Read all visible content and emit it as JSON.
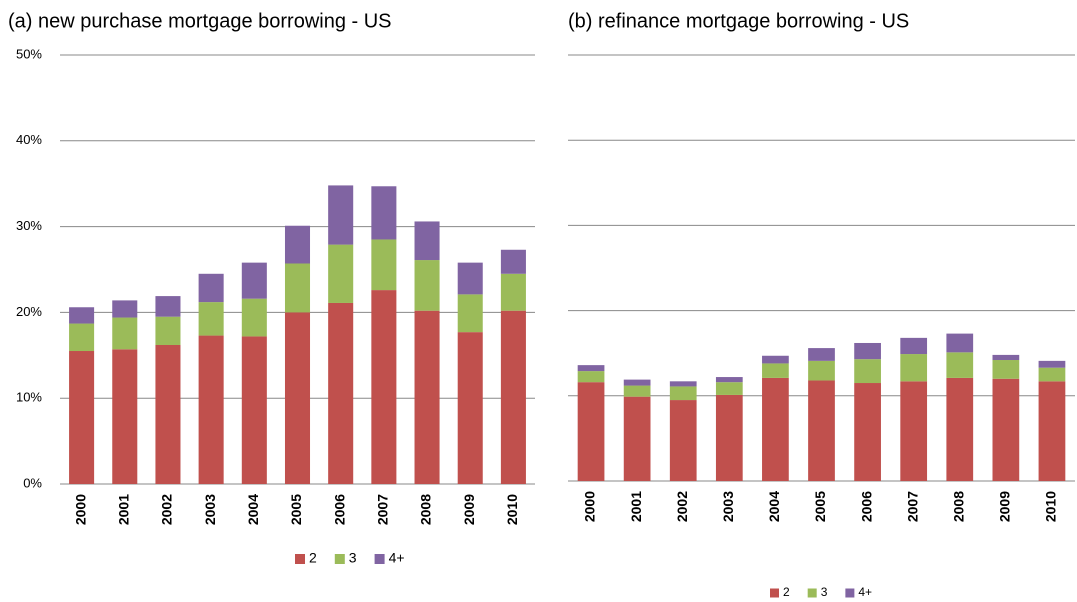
{
  "chart_data": [
    {
      "type": "stacked_bar",
      "title": "(a) new purchase mortgage borrowing - US",
      "categories": [
        "2000",
        "2001",
        "2002",
        "2003",
        "2004",
        "2005",
        "2006",
        "2007",
        "2008",
        "2009",
        "2010"
      ],
      "series": [
        {
          "name": "2",
          "color": "#c0504d",
          "values": [
            15.5,
            15.7,
            16.2,
            17.3,
            17.2,
            20.0,
            21.1,
            22.6,
            20.2,
            17.7,
            20.2
          ]
        },
        {
          "name": "3",
          "color": "#9bbb59",
          "values": [
            3.2,
            3.7,
            3.3,
            3.9,
            4.4,
            5.7,
            6.8,
            5.9,
            5.9,
            4.4,
            4.3
          ]
        },
        {
          "name": "4+",
          "color": "#8064a2",
          "values": [
            1.9,
            2.0,
            2.4,
            3.3,
            4.2,
            4.4,
            6.9,
            6.2,
            4.5,
            3.7,
            2.8
          ]
        }
      ],
      "ylim": [
        0,
        50
      ],
      "yticks": [
        {
          "value": 0,
          "label": "0%"
        },
        {
          "value": 10,
          "label": "10%"
        },
        {
          "value": 20,
          "label": "20%"
        },
        {
          "value": 30,
          "label": "30%"
        },
        {
          "value": 40,
          "label": "40%"
        },
        {
          "value": 50,
          "label": "50%"
        }
      ],
      "grid": true,
      "legend": "bottom"
    },
    {
      "type": "stacked_bar",
      "title": "(b) refinance mortgage borrowing - US",
      "categories": [
        "2000",
        "2001",
        "2002",
        "2003",
        "2004",
        "2005",
        "2006",
        "2007",
        "2008",
        "2009",
        "2010"
      ],
      "series": [
        {
          "name": "2",
          "color": "#c0504d",
          "values": [
            11.6,
            9.9,
            9.5,
            10.1,
            12.1,
            11.8,
            11.5,
            11.7,
            12.1,
            12.0,
            11.7
          ]
        },
        {
          "name": "3",
          "color": "#9bbb59",
          "values": [
            1.3,
            1.3,
            1.6,
            1.5,
            1.7,
            2.3,
            2.8,
            3.2,
            3.0,
            2.2,
            1.6
          ]
        },
        {
          "name": "4+",
          "color": "#8064a2",
          "values": [
            0.7,
            0.7,
            0.6,
            0.6,
            0.9,
            1.5,
            1.9,
            1.9,
            2.2,
            0.6,
            0.8
          ]
        }
      ],
      "ylim": [
        0,
        50
      ],
      "yticks": [
        0,
        10,
        20,
        30,
        40,
        50
      ],
      "grid": true,
      "legend": "bottom"
    }
  ]
}
